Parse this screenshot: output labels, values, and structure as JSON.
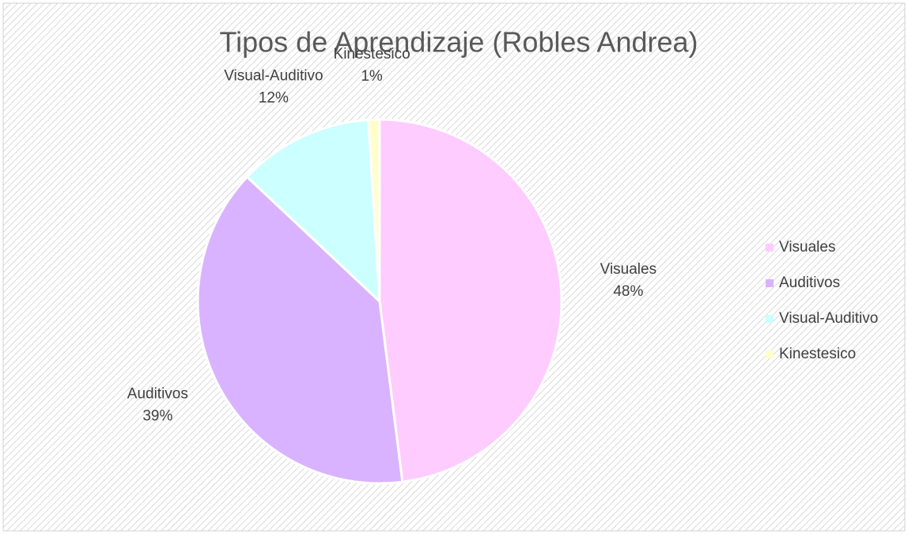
{
  "chart_data": {
    "type": "pie",
    "title": "Tipos de Aprendizaje (Robles Andrea)",
    "categories": [
      "Visuales",
      "Auditivos",
      "Visual-Auditivo",
      "Kinestesico"
    ],
    "values": [
      48,
      39,
      12,
      1
    ],
    "value_labels": [
      "48%",
      "39%",
      "12%",
      "1%"
    ],
    "colors": [
      "#ffccff",
      "#d9b3ff",
      "#ccffff",
      "#ffffcc"
    ],
    "legend": "right"
  }
}
